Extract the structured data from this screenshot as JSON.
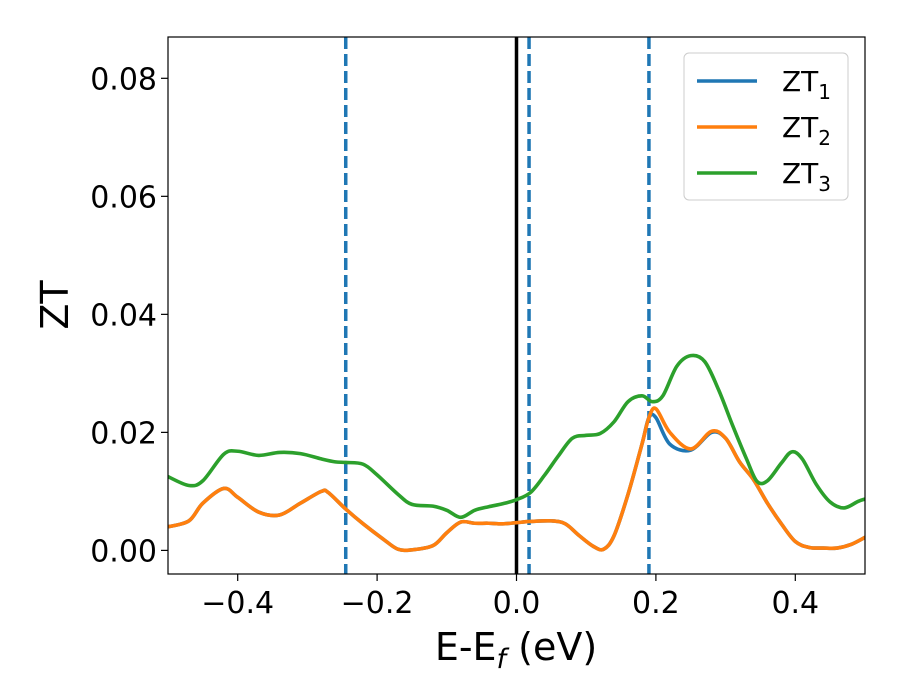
{
  "chart_data": {
    "type": "line",
    "xlabel": "E-E",
    "xlabel_sub": "f",
    "xlabel_unit": " (eV)",
    "ylabel": "ZT",
    "xlim": [
      -0.5,
      0.5
    ],
    "ylim": [
      -0.004,
      0.087
    ],
    "xticks": [
      -0.4,
      -0.2,
      0.0,
      0.2,
      0.4
    ],
    "xtick_labels": [
      "−0.4",
      "−0.2",
      "0.0",
      "0.2",
      "0.4"
    ],
    "yticks": [
      0.0,
      0.02,
      0.04,
      0.06,
      0.08
    ],
    "ytick_labels": [
      "0.00",
      "0.02",
      "0.04",
      "0.06",
      "0.08"
    ],
    "grid": false,
    "legend_position": "top-right",
    "vlines": [
      {
        "x": -0.245,
        "style": "dashed",
        "color": "#1f77b4"
      },
      {
        "x": 0.0,
        "style": "solid",
        "color": "#000000"
      },
      {
        "x": 0.018,
        "style": "dashed",
        "color": "#1f77b4"
      },
      {
        "x": 0.19,
        "style": "dashed",
        "color": "#1f77b4"
      }
    ],
    "series": [
      {
        "name": "ZT",
        "sub": "1",
        "color": "#1f77b4",
        "x": [
          -0.5,
          -0.47,
          -0.45,
          -0.42,
          -0.4,
          -0.37,
          -0.34,
          -0.31,
          -0.28,
          -0.27,
          -0.245,
          -0.22,
          -0.19,
          -0.17,
          -0.15,
          -0.12,
          -0.1,
          -0.08,
          -0.06,
          -0.04,
          -0.02,
          0.0,
          0.02,
          0.05,
          0.07,
          0.09,
          0.11,
          0.125,
          0.14,
          0.16,
          0.18,
          0.19,
          0.2,
          0.22,
          0.25,
          0.28,
          0.3,
          0.32,
          0.34,
          0.36,
          0.38,
          0.4,
          0.42,
          0.44,
          0.46,
          0.48,
          0.5
        ],
        "y": [
          0.004,
          0.005,
          0.008,
          0.0105,
          0.009,
          0.0065,
          0.006,
          0.008,
          0.01,
          0.0098,
          0.007,
          0.0045,
          0.0018,
          0.0002,
          0.0001,
          0.0008,
          0.003,
          0.0048,
          0.0046,
          0.0046,
          0.0045,
          0.0047,
          0.0049,
          0.005,
          0.0045,
          0.0025,
          0.0007,
          0.0002,
          0.0025,
          0.0095,
          0.018,
          0.0225,
          0.0225,
          0.018,
          0.017,
          0.02,
          0.019,
          0.015,
          0.012,
          0.008,
          0.0045,
          0.0015,
          0.0005,
          0.0004,
          0.0004,
          0.001,
          0.0022
        ]
      },
      {
        "name": "ZT",
        "sub": "2",
        "color": "#ff7f0e",
        "x": [
          -0.5,
          -0.47,
          -0.45,
          -0.42,
          -0.4,
          -0.37,
          -0.34,
          -0.31,
          -0.28,
          -0.27,
          -0.245,
          -0.22,
          -0.19,
          -0.17,
          -0.15,
          -0.12,
          -0.1,
          -0.08,
          -0.06,
          -0.04,
          -0.02,
          0.0,
          0.02,
          0.05,
          0.07,
          0.09,
          0.11,
          0.125,
          0.14,
          0.16,
          0.18,
          0.19,
          0.2,
          0.22,
          0.25,
          0.28,
          0.3,
          0.32,
          0.34,
          0.36,
          0.38,
          0.4,
          0.42,
          0.44,
          0.46,
          0.48,
          0.5
        ],
        "y": [
          0.004,
          0.005,
          0.008,
          0.0105,
          0.009,
          0.0065,
          0.006,
          0.008,
          0.01,
          0.0098,
          0.007,
          0.0045,
          0.0018,
          0.0002,
          0.0001,
          0.0008,
          0.003,
          0.0048,
          0.0046,
          0.0046,
          0.0045,
          0.0047,
          0.0049,
          0.005,
          0.0045,
          0.0025,
          0.0007,
          0.0002,
          0.0025,
          0.0095,
          0.018,
          0.0225,
          0.024,
          0.02,
          0.0172,
          0.0202,
          0.019,
          0.015,
          0.012,
          0.008,
          0.0045,
          0.0015,
          0.0005,
          0.0004,
          0.0004,
          0.001,
          0.0022
        ]
      },
      {
        "name": "ZT",
        "sub": "3",
        "color": "#2ca02c",
        "x": [
          -0.5,
          -0.47,
          -0.45,
          -0.42,
          -0.4,
          -0.37,
          -0.34,
          -0.31,
          -0.28,
          -0.26,
          -0.245,
          -0.22,
          -0.2,
          -0.17,
          -0.15,
          -0.12,
          -0.1,
          -0.08,
          -0.06,
          -0.04,
          -0.02,
          0.0,
          0.02,
          0.04,
          0.06,
          0.08,
          0.1,
          0.12,
          0.14,
          0.16,
          0.18,
          0.195,
          0.21,
          0.23,
          0.25,
          0.27,
          0.29,
          0.31,
          0.33,
          0.345,
          0.36,
          0.38,
          0.395,
          0.41,
          0.43,
          0.45,
          0.47,
          0.49,
          0.5
        ],
        "y": [
          0.0125,
          0.011,
          0.0118,
          0.0163,
          0.0168,
          0.0161,
          0.0166,
          0.0164,
          0.0155,
          0.015,
          0.0149,
          0.0146,
          0.0128,
          0.0095,
          0.0078,
          0.0075,
          0.0068,
          0.0056,
          0.0068,
          0.0074,
          0.0079,
          0.0086,
          0.0098,
          0.0127,
          0.016,
          0.019,
          0.0195,
          0.0198,
          0.0218,
          0.0252,
          0.0262,
          0.0252,
          0.0262,
          0.0312,
          0.033,
          0.032,
          0.0272,
          0.0212,
          0.0155,
          0.0117,
          0.0118,
          0.0148,
          0.0167,
          0.0155,
          0.0112,
          0.0082,
          0.0072,
          0.0083,
          0.0087
        ]
      }
    ]
  }
}
